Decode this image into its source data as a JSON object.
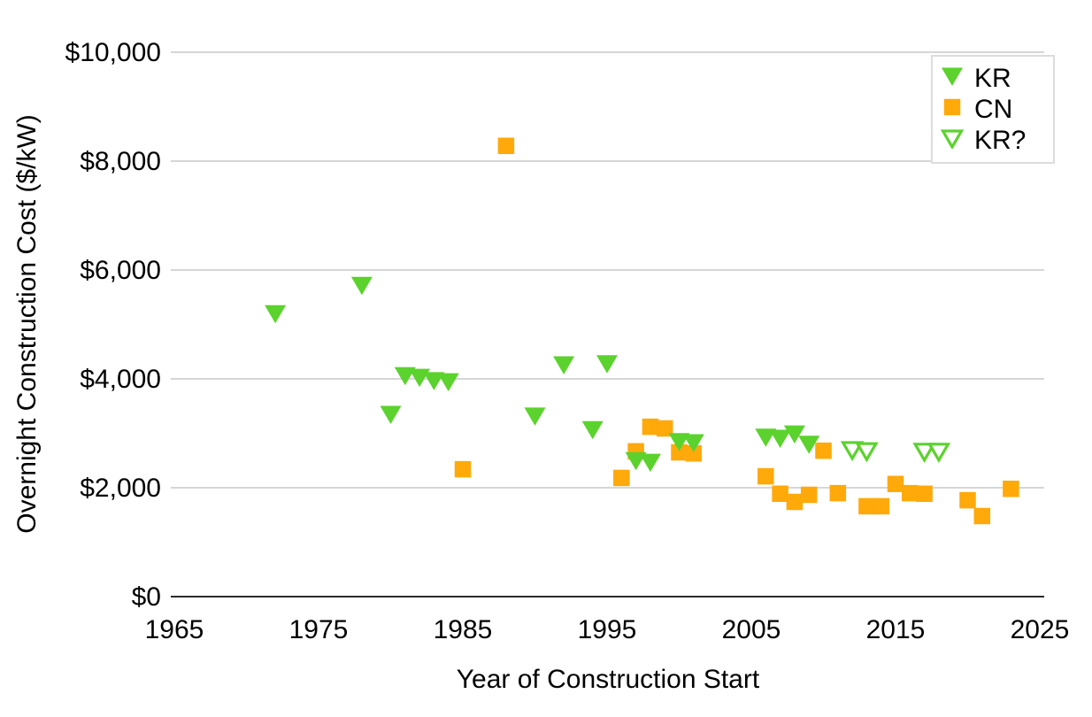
{
  "chart_data": {
    "type": "scatter",
    "title": "",
    "xlabel": "Year of Construction Start",
    "ylabel": "Overnight Construction Cost ($/kW)",
    "xlim": [
      1965,
      2025
    ],
    "ylim": [
      0,
      10000
    ],
    "grid": "horizontal",
    "legend_position": "top-right",
    "x_ticks": [
      1965,
      1975,
      1985,
      1995,
      2005,
      2015,
      2025
    ],
    "y_ticks": [
      0,
      2000,
      4000,
      6000,
      8000,
      10000
    ],
    "y_tick_labels": [
      "$0",
      "$2,000",
      "$4,000",
      "$6,000",
      "$8,000",
      "$10,000"
    ],
    "colors": {
      "kr_green": "#5bd22d",
      "cn_orange": "#ffa90a",
      "gridline": "#c9c9c9",
      "axis_line": "#2b2b2b"
    },
    "series": [
      {
        "name": "KR",
        "marker": "triangle-down-filled",
        "color": "#5bd22d",
        "points": [
          [
            1972,
            5200
          ],
          [
            1978,
            5720
          ],
          [
            1980,
            3350
          ],
          [
            1981,
            4060
          ],
          [
            1982,
            4030
          ],
          [
            1983,
            3970
          ],
          [
            1984,
            3950
          ],
          [
            1990,
            3320
          ],
          [
            1992,
            4260
          ],
          [
            1994,
            3070
          ],
          [
            1995,
            4280
          ],
          [
            1997,
            2500
          ],
          [
            1998,
            2470
          ],
          [
            2000,
            2850
          ],
          [
            2001,
            2830
          ],
          [
            2006,
            2930
          ],
          [
            2007,
            2910
          ],
          [
            2008,
            2990
          ],
          [
            2009,
            2800
          ]
        ]
      },
      {
        "name": "CN",
        "marker": "square-filled",
        "color": "#ffa90a",
        "points": [
          [
            1985,
            2340
          ],
          [
            1988,
            8280
          ],
          [
            1996,
            2180
          ],
          [
            1997,
            2670
          ],
          [
            1998,
            3120
          ],
          [
            1999,
            3090
          ],
          [
            2000,
            2650
          ],
          [
            2001,
            2630
          ],
          [
            2006,
            2210
          ],
          [
            2007,
            1890
          ],
          [
            2008,
            1740
          ],
          [
            2009,
            1870
          ],
          [
            2010,
            2680
          ],
          [
            2011,
            1900
          ],
          [
            2013,
            1660
          ],
          [
            2014,
            1660
          ],
          [
            2015,
            2070
          ],
          [
            2016,
            1900
          ],
          [
            2017,
            1890
          ],
          [
            2020,
            1770
          ],
          [
            2021,
            1480
          ],
          [
            2023,
            1980
          ]
        ]
      },
      {
        "name": "KR?",
        "marker": "triangle-down-open",
        "color": "#5bd22d",
        "points": [
          [
            2012,
            2700
          ],
          [
            2013,
            2680
          ],
          [
            2017,
            2670
          ],
          [
            2018,
            2670
          ]
        ]
      }
    ]
  }
}
